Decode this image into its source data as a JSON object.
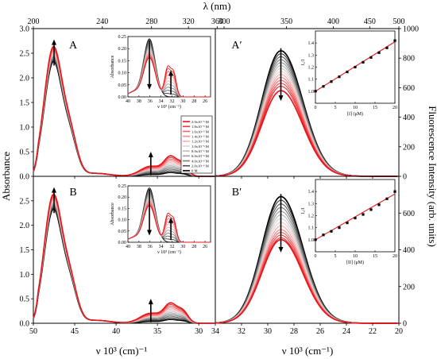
{
  "figure": {
    "top_label": "λ (nm)",
    "y_left_label": "Absorbance",
    "y_right_label": "Fluorescence Intensity (arb. units)",
    "x_left_label": "ν 10³ (cm)⁻¹",
    "x_right_label": "ν 10³ (cm⁻¹)"
  },
  "chart_data": [
    {
      "id": "A",
      "type": "line",
      "panel_label": "A",
      "x_axis": "wavenumber 10^3 cm^-1 (reversed)",
      "xlim": [
        50,
        28
      ],
      "ylim": [
        0,
        3.0
      ],
      "x_ticks": [
        50,
        45,
        40,
        35,
        30
      ],
      "y_ticks": [
        0.0,
        0.5,
        1.0,
        1.5,
        2.0,
        2.5,
        3.0
      ],
      "top_ticks_nm": [
        200,
        240,
        280,
        320,
        360
      ],
      "arrows": [
        {
          "x": 47.5,
          "direction": "up"
        },
        {
          "x": 35.8,
          "direction": "up"
        }
      ],
      "peaks": {
        "band1_center": 47.6,
        "band2_center": 33.6
      },
      "series_peak_values": {
        "band1": [
          2.3,
          2.33,
          2.36,
          2.39,
          2.42,
          2.45,
          2.48,
          2.51,
          2.54,
          2.57,
          2.6
        ],
        "band2": [
          0.07,
          0.1,
          0.13,
          0.16,
          0.19,
          0.22,
          0.25,
          0.28,
          0.31,
          0.34,
          0.37
        ]
      }
    },
    {
      "id": "A_inset",
      "type": "line",
      "xlabel": "ν 10³ (cm⁻¹)",
      "ylabel": "Absorbance",
      "xlim": [
        40,
        25
      ],
      "ylim": [
        0,
        0.25
      ],
      "x_ticks": [
        40,
        38,
        36,
        34,
        32,
        30,
        28,
        26
      ],
      "y_ticks": [
        0.0,
        0.05,
        0.1,
        0.15,
        0.2,
        0.25
      ],
      "series_peak_values": {
        "band_36": [
          0.24,
          0.232,
          0.224,
          0.216,
          0.208,
          0.2,
          0.192,
          0.184,
          0.176,
          0.168,
          0.162
        ],
        "band_32": [
          0.0,
          0.012,
          0.024,
          0.036,
          0.048,
          0.06,
          0.072,
          0.084,
          0.096,
          0.108,
          0.118
        ]
      }
    },
    {
      "id": "B",
      "type": "line",
      "panel_label": "B",
      "xlim": [
        50,
        28
      ],
      "ylim": [
        0,
        3.0
      ],
      "x_ticks": [
        50,
        45,
        40,
        35,
        30
      ],
      "y_ticks": [
        0.0,
        0.5,
        1.0,
        1.5,
        2.0,
        2.5
      ],
      "arrows": [
        {
          "x": 47.5,
          "direction": "up"
        },
        {
          "x": 35.8,
          "direction": "up"
        }
      ],
      "series_peak_values": {
        "band1": [
          2.3,
          2.33,
          2.36,
          2.39,
          2.42,
          2.45,
          2.48,
          2.51,
          2.54,
          2.57,
          2.6
        ],
        "band2": [
          0.07,
          0.1,
          0.13,
          0.16,
          0.19,
          0.22,
          0.25,
          0.28,
          0.31,
          0.34,
          0.37
        ]
      }
    },
    {
      "id": "B_inset",
      "type": "line",
      "xlabel": "ν 10³ (cm⁻¹)",
      "ylabel": "Absorbance",
      "xlim": [
        40,
        25
      ],
      "ylim": [
        0,
        0.25
      ],
      "x_ticks": [
        40,
        38,
        36,
        34,
        32,
        30,
        28,
        26
      ],
      "y_ticks": [
        0.0,
        0.05,
        0.1,
        0.15,
        0.2,
        0.25
      ],
      "series_peak_values": {
        "band_36": [
          0.24,
          0.232,
          0.224,
          0.216,
          0.208,
          0.2,
          0.192,
          0.184,
          0.176,
          0.168,
          0.162
        ],
        "band_32": [
          0.0,
          0.012,
          0.024,
          0.036,
          0.048,
          0.06,
          0.072,
          0.084,
          0.096,
          0.108,
          0.118
        ]
      }
    },
    {
      "id": "A_prime",
      "type": "line",
      "panel_label": "A′",
      "xlim": [
        34,
        20
      ],
      "ylim": [
        0,
        1000
      ],
      "x_ticks": [
        34,
        32,
        30,
        28,
        26,
        24,
        22,
        20
      ],
      "y_ticks": [
        0,
        200,
        400,
        600,
        800,
        1000
      ],
      "top_ticks_nm": [
        300,
        350,
        400,
        450,
        500
      ],
      "peak_center": 29.0,
      "arrow": {
        "x": 29.0,
        "direction": "down"
      },
      "series_peak_values": [
        850,
        830,
        810,
        790,
        770,
        750,
        730,
        710,
        690,
        670,
        650,
        630,
        610,
        580
      ]
    },
    {
      "id": "A_prime_inset",
      "type": "scatter",
      "xlabel": "[I] (μM)",
      "ylabel": "I₀/I",
      "xlim": [
        0,
        20
      ],
      "ylim": [
        0.9,
        1.5
      ],
      "x_ticks": [
        0,
        5,
        10,
        15,
        20
      ],
      "y_ticks": [
        1.0,
        1.1,
        1.2,
        1.3,
        1.4
      ],
      "x": [
        0,
        2,
        4,
        6,
        8,
        10,
        12,
        14,
        16,
        18,
        20
      ],
      "y": [
        1.0,
        1.04,
        1.08,
        1.12,
        1.16,
        1.2,
        1.24,
        1.28,
        1.32,
        1.36,
        1.42
      ],
      "fit_line": {
        "x": [
          0,
          20
        ],
        "y": [
          1.0,
          1.41
        ]
      }
    },
    {
      "id": "B_prime",
      "type": "line",
      "panel_label": "B′",
      "xlim": [
        34,
        20
      ],
      "ylim": [
        0,
        800
      ],
      "x_ticks": [
        34,
        32,
        30,
        28,
        26,
        24,
        22,
        20
      ],
      "y_ticks": [
        0,
        200,
        400,
        600
      ],
      "peak_center": 29.0,
      "arrow": {
        "x": 29.0,
        "direction": "down"
      },
      "series_peak_values": [
        690,
        670,
        650,
        630,
        610,
        590,
        570,
        550,
        530,
        510,
        495,
        480,
        465,
        455
      ]
    },
    {
      "id": "B_prime_inset",
      "type": "scatter",
      "xlabel": "[II] (μM)",
      "ylabel": "I₀/I",
      "xlim": [
        0,
        20
      ],
      "ylim": [
        0.9,
        1.5
      ],
      "x_ticks": [
        0,
        5,
        10,
        15,
        20
      ],
      "y_ticks": [
        1.0,
        1.1,
        1.2,
        1.3,
        1.4
      ],
      "x": [
        0,
        2,
        4,
        6,
        8,
        10,
        12,
        14,
        16,
        18,
        20
      ],
      "y": [
        1.0,
        1.04,
        1.07,
        1.1,
        1.14,
        1.18,
        1.21,
        1.25,
        1.29,
        1.34,
        1.4
      ],
      "fit_line": {
        "x": [
          0,
          20
        ],
        "y": [
          1.0,
          1.38
        ]
      }
    }
  ],
  "legend": {
    "title": "",
    "entries": [
      {
        "label": "2.0x10⁻⁵ M",
        "color": "#e8151b"
      },
      {
        "label": "1.8x10⁻⁵ M",
        "color": "#ee3a3c"
      },
      {
        "label": "1.6x10⁻⁵ M",
        "color": "#f26466"
      },
      {
        "label": "1.4x10⁻⁵ M",
        "color": "#f58b8c"
      },
      {
        "label": "1.2x10⁻⁵ M",
        "color": "#f8b0b0"
      },
      {
        "label": "1.0x10⁻⁵ M",
        "color": "#d8d8d8"
      },
      {
        "label": "8.0x10⁻⁶ M",
        "color": "#bcbcbc"
      },
      {
        "label": "6.0x10⁻⁶ M",
        "color": "#9e9e9e"
      },
      {
        "label": "4.0x10⁻⁶ M",
        "color": "#7d7d7d"
      },
      {
        "label": "2.0x10⁻⁶ M",
        "color": "#4d4d4d"
      },
      {
        "label": "0 M",
        "color": "#000000"
      }
    ]
  },
  "colors": {
    "abs_series": [
      "#000000",
      "#3a3a3a",
      "#5e5e5e",
      "#808080",
      "#a0a0a0",
      "#c4c4c4",
      "#f9b9b9",
      "#f58e8f",
      "#f0605f",
      "#ea3537",
      "#e8151b"
    ],
    "fl_series": [
      "#000000",
      "#3a3a3a",
      "#5a5a5a",
      "#787878",
      "#969696",
      "#b4b4b4",
      "#cfcfcf",
      "#f8c8c8",
      "#f6a5a5",
      "#f38283",
      "#f06263",
      "#ec4345",
      "#e92a2d",
      "#e8151b"
    ],
    "fit_line": "#e8151b"
  }
}
